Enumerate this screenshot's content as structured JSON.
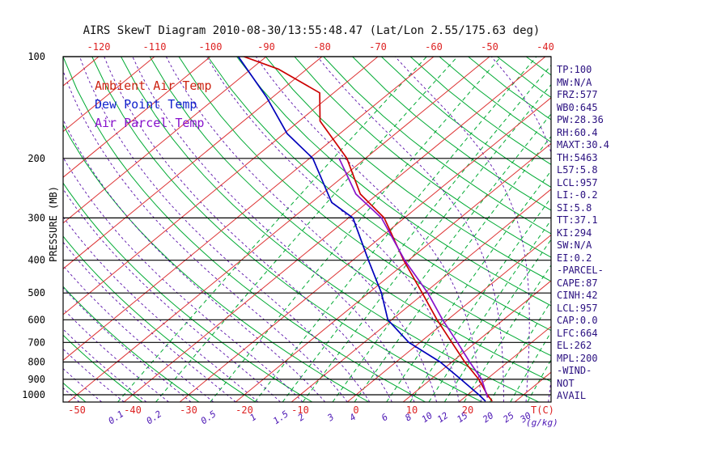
{
  "title": "AIRS SkewT Diagram 2010-08-30/13:55:48.47 (Lat/Lon 2.55/175.63 deg)",
  "colors": {
    "isotherm_red": "#dd3333",
    "adiabat_green": "#00aa33",
    "mixing_green": "#00aa33",
    "moist_purple": "#5a10aa",
    "pressure_black": "#000000",
    "top_tick_red": "#dd2222",
    "bottom_tick_red": "#dd2222",
    "mixing_label_purple": "#4a14b4",
    "stats_text": "#2a1080",
    "frame_black": "#000000"
  },
  "legend": {
    "items": [
      {
        "label": "Ambient Air Temp",
        "color": "#cc2211"
      },
      {
        "label": "Dew Point Temp",
        "color": "#1122cc"
      },
      {
        "label": "Air Parcel Temp",
        "color": "#8812cc"
      }
    ]
  },
  "axes": {
    "pressure_label": "PRESSURE (MB)",
    "temp_unit": "T(C)",
    "mixing_unit": "(g/kg)"
  },
  "stats": {
    "lines": [
      "TP:100",
      "MW:N/A",
      "FRZ:577",
      "WB0:645",
      "PW:28.36",
      "RH:60.4",
      "MAXT:30.4",
      "TH:5463",
      "L57:5.8",
      "LCL:957",
      "LI:-0.2",
      "SI:5.8",
      "TT:37.1",
      "KI:294",
      "SW:N/A",
      "EI:0.2",
      "-PARCEL-",
      "CAPE:87",
      "CINH:42",
      "LCL:957",
      "CAP:0.0",
      "LFC:664",
      "EL:262",
      "MPL:200",
      "-WIND-",
      "NOT",
      "AVAIL"
    ]
  },
  "chart_data": {
    "type": "line",
    "subtype": "skewt-logp",
    "title": "AIRS SkewT Diagram 2010-08-30/13:55:48.47 (Lat/Lon 2.55/175.63 deg)",
    "ylabel": "PRESSURE (MB)",
    "xlabel": "T(C)",
    "y_scale": "log-pressure",
    "pressure_range": [
      100,
      1050
    ],
    "pressure_ticks": [
      100,
      200,
      300,
      400,
      500,
      600,
      700,
      800,
      900,
      1000
    ],
    "top_temp_ticks": [
      -120,
      -110,
      -100,
      -90,
      -80,
      -70,
      -60,
      -50,
      -40
    ],
    "bottom_temp_ticks": [
      -50,
      -40,
      -30,
      -20,
      -10,
      0,
      10,
      20
    ],
    "mixing_ratio_values": [
      0.1,
      0.2,
      0.5,
      1,
      1.5,
      2,
      3,
      4,
      6,
      8,
      10,
      12,
      15,
      20,
      25,
      30
    ],
    "isotherms": {
      "min": -120,
      "max": 40,
      "step": 10
    },
    "dry_adiabats": {
      "min": -60,
      "max": 180,
      "step": 10
    },
    "moist_adiabats": {
      "min": -52,
      "max": 36,
      "step": 4
    },
    "legend_position": "upper-left-inside",
    "series": [
      {
        "id": "ambient-air-temp",
        "name": "Ambient Air Temp",
        "color": "#cc0000",
        "style": "solid",
        "points": [
          [
            100,
            -94
          ],
          [
            109,
            -85
          ],
          [
            128,
            -72.5
          ],
          [
            155,
            -66.3
          ],
          [
            200,
            -53.3
          ],
          [
            255,
            -43.1
          ],
          [
            300,
            -33.6
          ],
          [
            400,
            -20.9
          ],
          [
            500,
            -10.4
          ],
          [
            600,
            -1.9
          ],
          [
            700,
            5.7
          ],
          [
            800,
            12.3
          ],
          [
            900,
            18.6
          ],
          [
            1000,
            23.5
          ],
          [
            1045,
            25.8
          ]
        ]
      },
      {
        "id": "dew-point-temp",
        "name": "Dew Point Temp",
        "color": "#0000bb",
        "style": "solid",
        "points": [
          [
            100,
            -95
          ],
          [
            132,
            -81
          ],
          [
            169,
            -69.4
          ],
          [
            200,
            -59.4
          ],
          [
            270,
            -46.4
          ],
          [
            300,
            -39.2
          ],
          [
            400,
            -27.2
          ],
          [
            500,
            -17.7
          ],
          [
            600,
            -10.7
          ],
          [
            700,
            -2.0
          ],
          [
            800,
            7.9
          ],
          [
            900,
            15.4
          ],
          [
            1000,
            22.0
          ],
          [
            1045,
            24.6
          ]
        ]
      },
      {
        "id": "air-parcel-temp",
        "name": "Air Parcel Temp",
        "color": "#8812cc",
        "style": "solid",
        "points": [
          [
            200,
            -54.7
          ],
          [
            255,
            -43.9
          ],
          [
            300,
            -34.1
          ],
          [
            400,
            -20.7
          ],
          [
            500,
            -9.4
          ],
          [
            600,
            -0.9
          ],
          [
            700,
            6.7
          ],
          [
            800,
            13.2
          ],
          [
            900,
            19.1
          ],
          [
            1020,
            24.2
          ]
        ]
      }
    ]
  }
}
